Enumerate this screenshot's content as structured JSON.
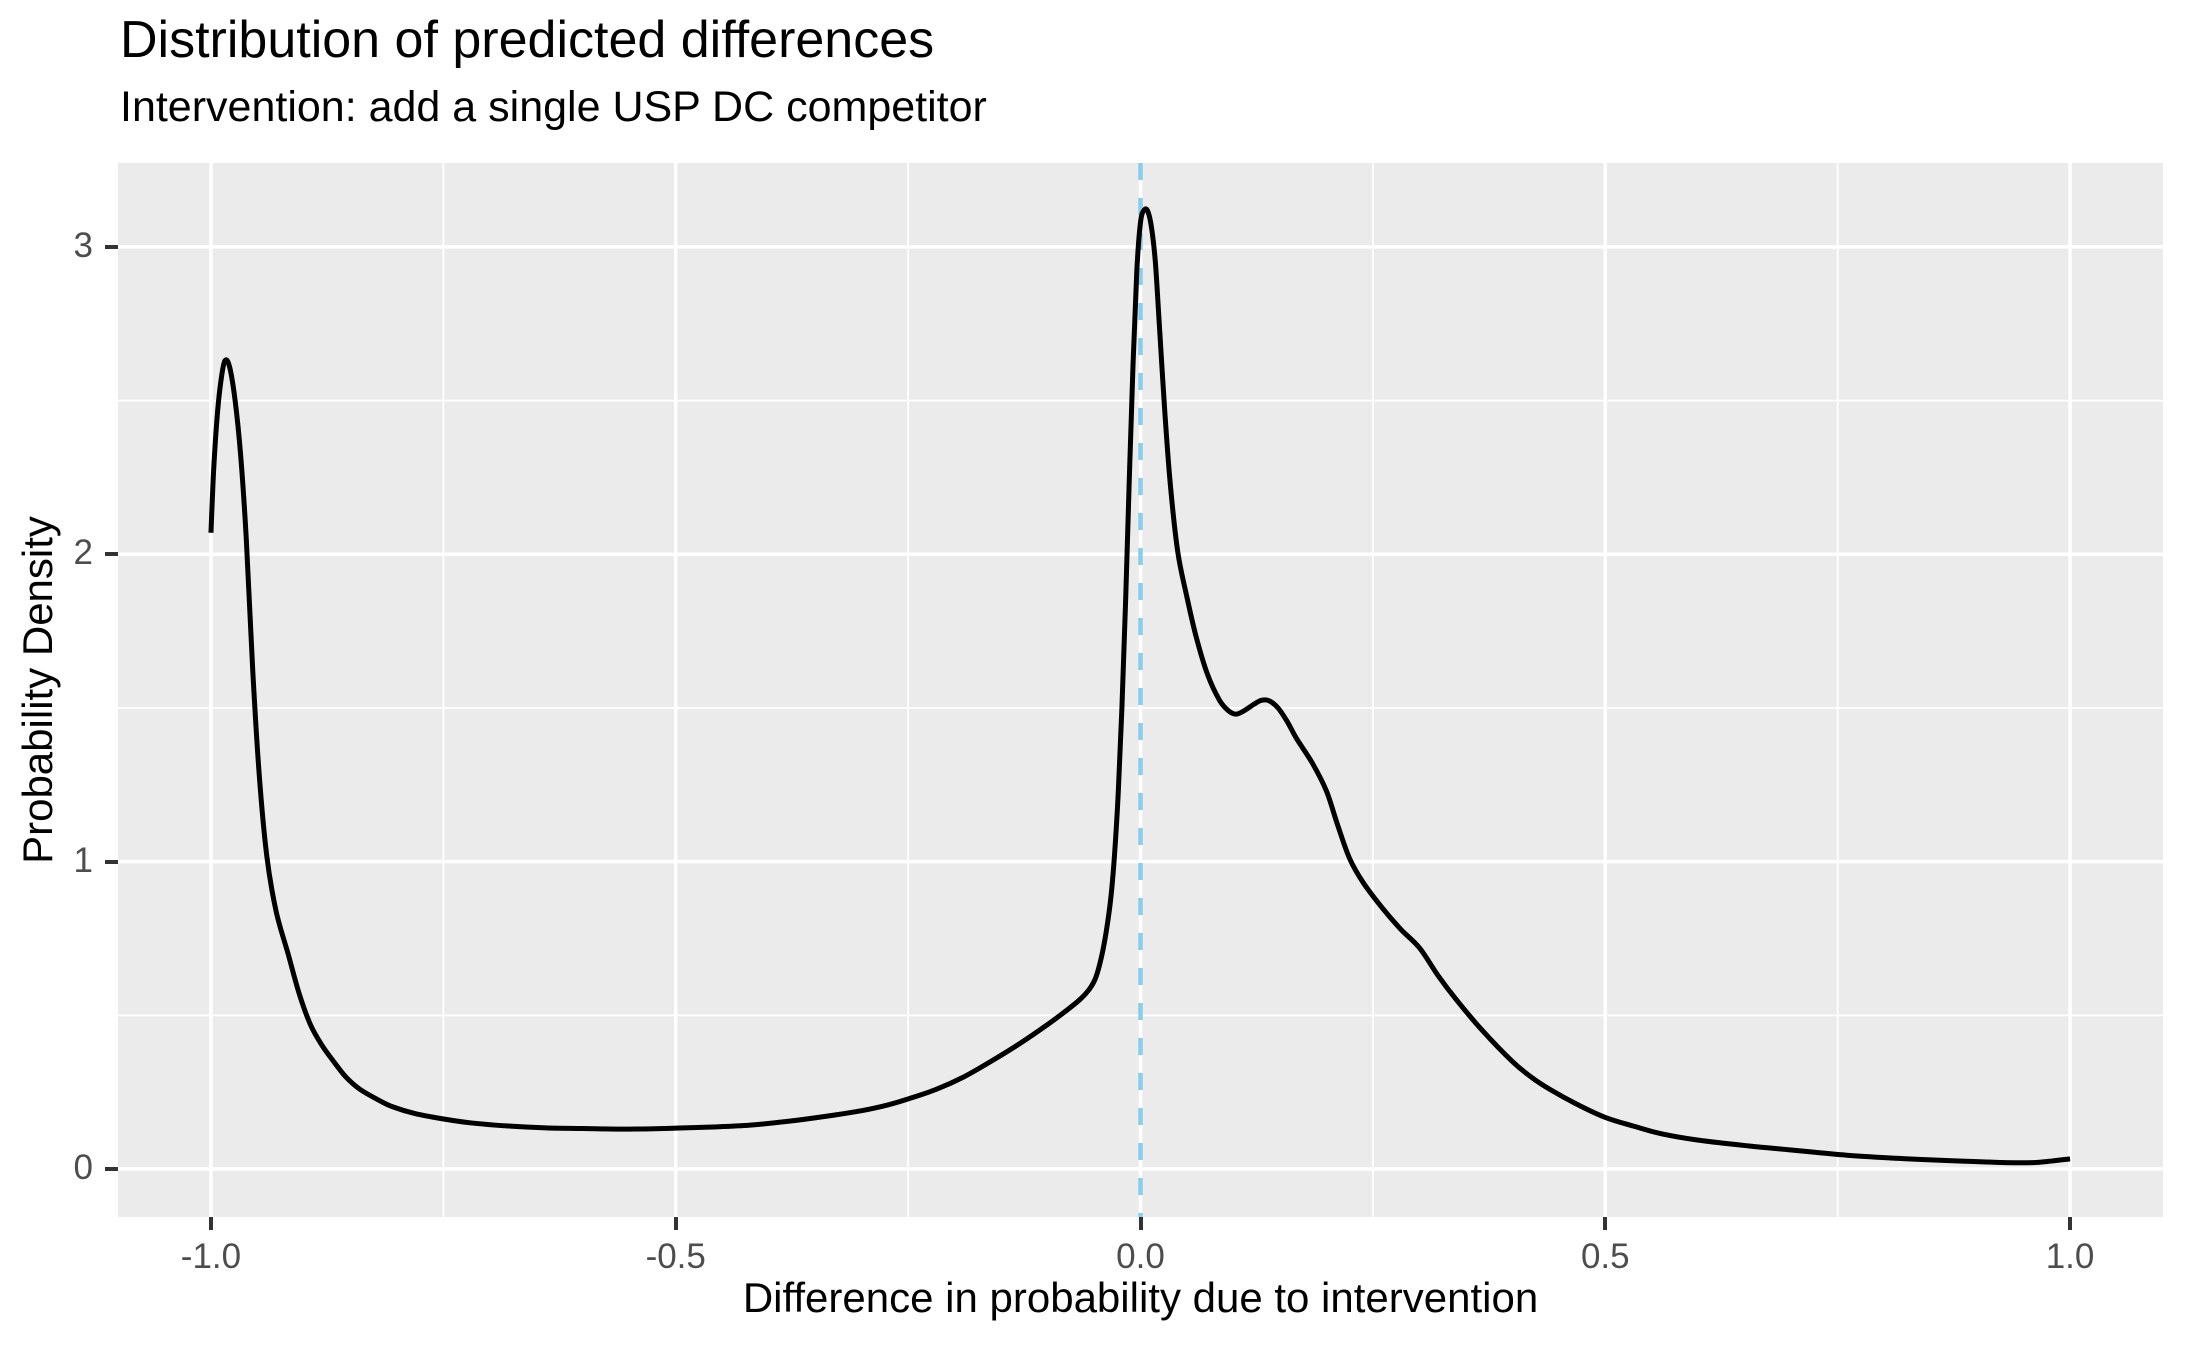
{
  "header": {
    "title": "Distribution of predicted differences",
    "subtitle": "Intervention: add a single USP DC competitor"
  },
  "chart_data": {
    "type": "line",
    "title": "Distribution of predicted differences",
    "subtitle": "Intervention: add a single USP DC competitor",
    "xlabel": "Difference in probability due to intervention",
    "ylabel": "Probability Density",
    "xlim": [
      -1.1,
      1.1
    ],
    "ylim": [
      -0.156,
      3.273
    ],
    "grid": true,
    "legend": false,
    "x_ticks": [
      -1.0,
      -0.5,
      0.0,
      0.5,
      1.0
    ],
    "x_tick_labels": [
      "-1.0",
      "-0.5",
      "0.0",
      "0.5",
      "1.0"
    ],
    "x_minor_ticks": [
      -0.75,
      -0.25,
      0.25,
      0.75
    ],
    "y_ticks": [
      0,
      1,
      2,
      3
    ],
    "y_tick_labels": [
      "0",
      "1",
      "2",
      "3"
    ],
    "y_minor_ticks": [
      0.5,
      1.5,
      2.5
    ],
    "reference_line": {
      "x": 0.0,
      "color": "#87CEEB",
      "style": "dashed"
    },
    "colors": {
      "panel_background": "#EBEBEB",
      "gridline": "#FFFFFF",
      "axis_text": "#4D4D4D",
      "tick_mark": "#333333",
      "curve": "#000000",
      "title_text": "#000000"
    },
    "series": [
      {
        "name": "predicted-difference-density",
        "color": "#000000",
        "points": [
          [
            -1.0,
            2.07
          ],
          [
            -0.997,
            2.28
          ],
          [
            -0.993,
            2.46
          ],
          [
            -0.989,
            2.57
          ],
          [
            -0.985,
            2.63
          ],
          [
            -0.98,
            2.61
          ],
          [
            -0.974,
            2.5
          ],
          [
            -0.968,
            2.32
          ],
          [
            -0.962,
            2.05
          ],
          [
            -0.955,
            1.62
          ],
          [
            -0.948,
            1.28
          ],
          [
            -0.94,
            1.02
          ],
          [
            -0.93,
            0.84
          ],
          [
            -0.917,
            0.7
          ],
          [
            -0.905,
            0.57
          ],
          [
            -0.893,
            0.47
          ],
          [
            -0.88,
            0.4
          ],
          [
            -0.868,
            0.35
          ],
          [
            -0.855,
            0.3
          ],
          [
            -0.84,
            0.26
          ],
          [
            -0.82,
            0.225
          ],
          [
            -0.805,
            0.203
          ],
          [
            -0.78,
            0.18
          ],
          [
            -0.75,
            0.163
          ],
          [
            -0.72,
            0.15
          ],
          [
            -0.68,
            0.14
          ],
          [
            -0.64,
            0.134
          ],
          [
            -0.6,
            0.132
          ],
          [
            -0.55,
            0.13
          ],
          [
            -0.5,
            0.133
          ],
          [
            -0.46,
            0.137
          ],
          [
            -0.42,
            0.143
          ],
          [
            -0.38,
            0.155
          ],
          [
            -0.34,
            0.171
          ],
          [
            -0.3,
            0.19
          ],
          [
            -0.27,
            0.21
          ],
          [
            -0.25,
            0.228
          ],
          [
            -0.22,
            0.259
          ],
          [
            -0.19,
            0.3
          ],
          [
            -0.16,
            0.352
          ],
          [
            -0.13,
            0.408
          ],
          [
            -0.1,
            0.47
          ],
          [
            -0.08,
            0.515
          ],
          [
            -0.065,
            0.552
          ],
          [
            -0.055,
            0.585
          ],
          [
            -0.048,
            0.624
          ],
          [
            -0.042,
            0.69
          ],
          [
            -0.037,
            0.77
          ],
          [
            -0.032,
            0.88
          ],
          [
            -0.028,
            1.02
          ],
          [
            -0.024,
            1.22
          ],
          [
            -0.02,
            1.5
          ],
          [
            -0.016,
            1.85
          ],
          [
            -0.012,
            2.25
          ],
          [
            -0.008,
            2.62
          ],
          [
            -0.004,
            2.92
          ],
          [
            0.0,
            3.08
          ],
          [
            0.004,
            3.12
          ],
          [
            0.008,
            3.115
          ],
          [
            0.012,
            3.06
          ],
          [
            0.016,
            2.95
          ],
          [
            0.02,
            2.76
          ],
          [
            0.026,
            2.47
          ],
          [
            0.032,
            2.23
          ],
          [
            0.04,
            2.01
          ],
          [
            0.05,
            1.86
          ],
          [
            0.06,
            1.73
          ],
          [
            0.072,
            1.61
          ],
          [
            0.085,
            1.525
          ],
          [
            0.095,
            1.49
          ],
          [
            0.103,
            1.48
          ],
          [
            0.112,
            1.492
          ],
          [
            0.122,
            1.512
          ],
          [
            0.13,
            1.525
          ],
          [
            0.138,
            1.524
          ],
          [
            0.148,
            1.5
          ],
          [
            0.158,
            1.455
          ],
          [
            0.168,
            1.4
          ],
          [
            0.185,
            1.32
          ],
          [
            0.2,
            1.23
          ],
          [
            0.212,
            1.12
          ],
          [
            0.225,
            1.01
          ],
          [
            0.24,
            0.93
          ],
          [
            0.26,
            0.85
          ],
          [
            0.28,
            0.78
          ],
          [
            0.3,
            0.72
          ],
          [
            0.32,
            0.63
          ],
          [
            0.34,
            0.55
          ],
          [
            0.368,
            0.45
          ],
          [
            0.4,
            0.35
          ],
          [
            0.42,
            0.3
          ],
          [
            0.44,
            0.26
          ],
          [
            0.47,
            0.21
          ],
          [
            0.5,
            0.168
          ],
          [
            0.53,
            0.14
          ],
          [
            0.56,
            0.115
          ],
          [
            0.6,
            0.094
          ],
          [
            0.655,
            0.075
          ],
          [
            0.7,
            0.062
          ],
          [
            0.76,
            0.045
          ],
          [
            0.82,
            0.034
          ],
          [
            0.88,
            0.026
          ],
          [
            0.93,
            0.021
          ],
          [
            0.96,
            0.021
          ],
          [
            0.98,
            0.026
          ],
          [
            1.0,
            0.033
          ]
        ]
      }
    ]
  }
}
